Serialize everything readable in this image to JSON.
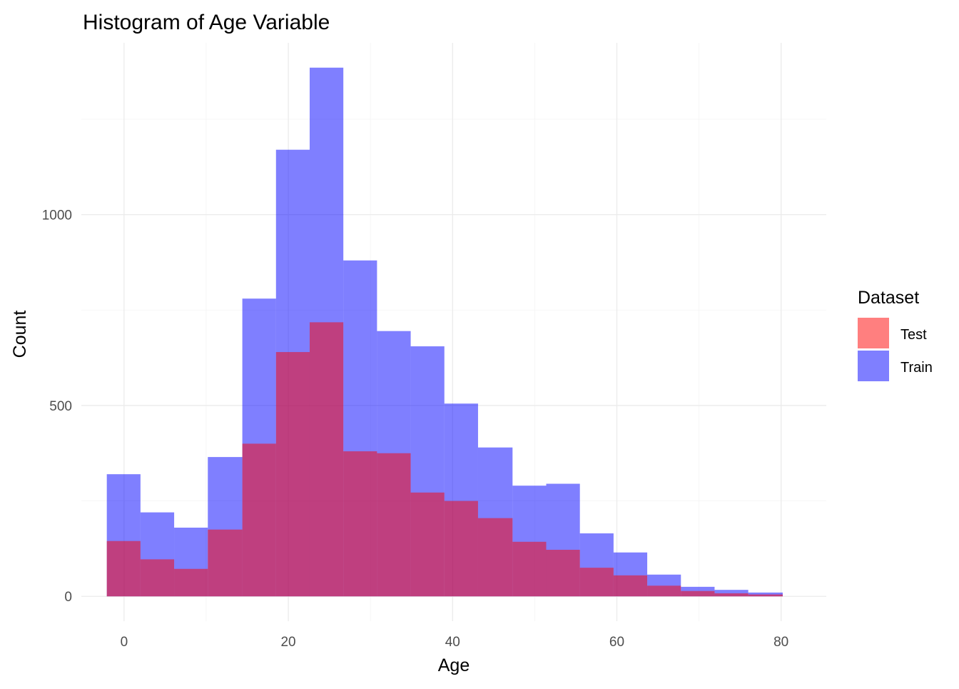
{
  "chart_data": {
    "type": "bar",
    "title": "Histogram of Age Variable",
    "xlabel": "Age",
    "ylabel": "Count",
    "xlim": [
      -5.2,
      85.5
    ],
    "ylim": [
      -65,
      1450
    ],
    "x_ticks": [
      0,
      20,
      40,
      60,
      80
    ],
    "y_ticks": [
      0,
      500,
      1000
    ],
    "bin_edges": [
      -2.1,
      2.0,
      6.1,
      10.2,
      14.4,
      18.5,
      22.6,
      26.7,
      30.8,
      34.9,
      39.0,
      43.1,
      47.3,
      51.4,
      55.5,
      59.6,
      63.7,
      67.8,
      71.9,
      76.0,
      80.2
    ],
    "series": [
      {
        "name": "Test",
        "color": "#ff0000",
        "opacity": 0.5,
        "values": [
          145,
          97,
          72,
          175,
          400,
          640,
          718,
          380,
          375,
          272,
          250,
          205,
          143,
          122,
          75,
          55,
          28,
          14,
          8,
          5
        ]
      },
      {
        "name": "Train",
        "color": "#0000ff",
        "opacity": 0.5,
        "values": [
          320,
          220,
          180,
          365,
          780,
          1170,
          1385,
          880,
          695,
          655,
          505,
          390,
          290,
          295,
          165,
          115,
          57,
          25,
          17,
          10
        ]
      }
    ],
    "grid": true,
    "legend": {
      "title": "Dataset",
      "placement": "right",
      "items": [
        "Test",
        "Train"
      ]
    }
  }
}
